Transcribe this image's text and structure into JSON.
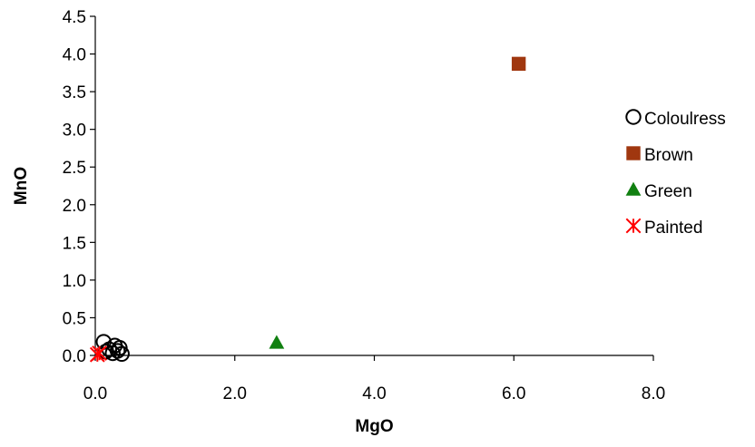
{
  "chart_data": {
    "type": "scatter",
    "title": "",
    "xlabel": "MgO",
    "ylabel": "MnO",
    "xlim": [
      0,
      8
    ],
    "ylim": [
      0,
      4.5
    ],
    "xticks": [
      "0.0",
      "2.0",
      "4.0",
      "6.0",
      "8.0"
    ],
    "yticks": [
      "0.0",
      "0.5",
      "1.0",
      "1.5",
      "2.0",
      "2.5",
      "3.0",
      "3.5",
      "4.0",
      "4.5"
    ],
    "grid": false,
    "legend_position": "right",
    "series": [
      {
        "name": "Coloulress",
        "marker": "open-circle",
        "color": "#000000",
        "points": [
          {
            "x": 0.12,
            "y": 0.18
          },
          {
            "x": 0.2,
            "y": 0.08
          },
          {
            "x": 0.25,
            "y": 0.03
          },
          {
            "x": 0.28,
            "y": 0.13
          },
          {
            "x": 0.32,
            "y": 0.06
          },
          {
            "x": 0.35,
            "y": 0.1
          },
          {
            "x": 0.38,
            "y": 0.02
          },
          {
            "x": 0.15,
            "y": 0.05
          }
        ]
      },
      {
        "name": "Brown",
        "marker": "filled-square",
        "color": "#A0370F",
        "points": [
          {
            "x": 6.07,
            "y": 3.87
          }
        ]
      },
      {
        "name": "Green",
        "marker": "filled-triangle",
        "color": "#118011",
        "points": [
          {
            "x": 2.6,
            "y": 0.17
          }
        ]
      },
      {
        "name": "Painted",
        "marker": "asterisk",
        "color": "#FF0000",
        "points": [
          {
            "x": 0.03,
            "y": 0.01
          },
          {
            "x": 0.06,
            "y": 0.03
          }
        ]
      }
    ]
  }
}
